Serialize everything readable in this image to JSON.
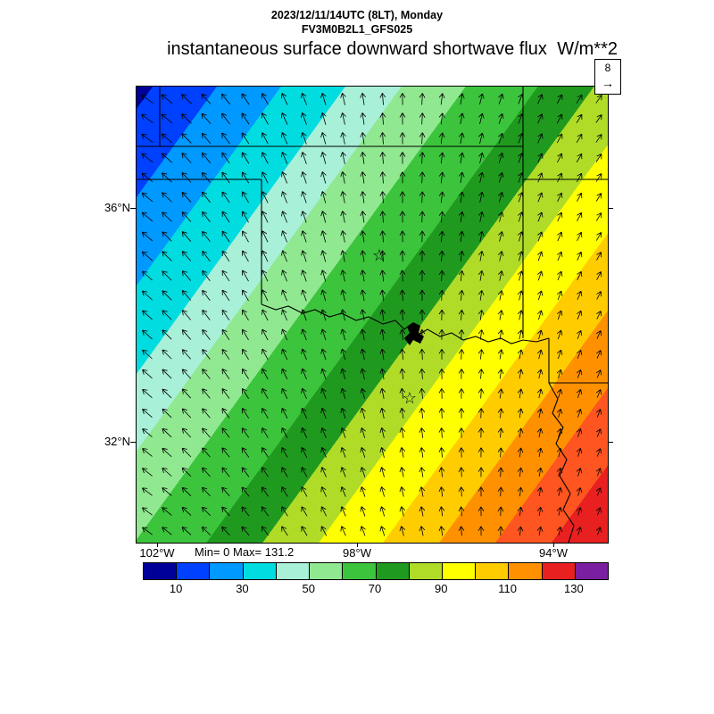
{
  "header": {
    "line1": "2023/12/11/14UTC (8LT), Monday",
    "line2": "FV3M0B2L1_GFS025"
  },
  "title": {
    "text": "instantaneous surface downward shortwave flux",
    "units": "W/m**2"
  },
  "stats": {
    "minmax": "Min= 0 Max= 131.2"
  },
  "wind_ref": {
    "value": "8",
    "arrow": "→"
  },
  "axes": {
    "y": [
      {
        "label": "36°N"
      },
      {
        "label": "32°N"
      }
    ],
    "x": [
      {
        "label": "102°W"
      },
      {
        "label": "98°W"
      },
      {
        "label": "94°W"
      }
    ]
  },
  "chart_data": {
    "type": "heatmap",
    "title": "instantaneous surface downward shortwave flux",
    "units": "W/m**2",
    "valid_time": "2023/12/11/14UTC (8LT), Monday",
    "model": "FV3M0B2L1_GFS025",
    "min": 0,
    "max": 131.2,
    "region": {
      "lon_tick_labels": [
        "102°W",
        "98°W",
        "94°W"
      ],
      "lat_tick_labels": [
        "36°N",
        "32°N"
      ]
    },
    "colorbar": {
      "levels": [
        10,
        20,
        30,
        40,
        50,
        60,
        70,
        80,
        90,
        100,
        110,
        120,
        130
      ],
      "colors": [
        "#000099",
        "#0040ff",
        "#0099ff",
        "#00dce0",
        "#a8f0d8",
        "#90e890",
        "#3cc43c",
        "#1f9a1f",
        "#b0dc28",
        "#ffff00",
        "#ffcc00",
        "#ff9100",
        "#e82020",
        "#7a1fa0"
      ],
      "tick_labels": [
        "10",
        "30",
        "50",
        "70",
        "90",
        "110",
        "130"
      ]
    },
    "field": {
      "comment": "shortwave flux increases along NW-to-SE diagonal, low (blue ~10) NW corner to high (red ~131) SE corner",
      "angle_deg": 126,
      "bands": [
        {
          "c": "#000099",
          "to": 2
        },
        {
          "c": "#0040ff",
          "to": 10
        },
        {
          "c": "#0099ff",
          "to": 18
        },
        {
          "c": "#00dce0",
          "to": 26
        },
        {
          "c": "#a8f0d8",
          "to": 33
        },
        {
          "c": "#90e890",
          "to": 41
        },
        {
          "c": "#3cc43c",
          "to": 50
        },
        {
          "c": "#1f9a1f",
          "to": 57
        },
        {
          "c": "#b0dc28",
          "to": 64
        },
        {
          "c": "#ffff00",
          "to": 72
        },
        {
          "c": "#ffcc00",
          "to": 79
        },
        {
          "c": "#ff9100",
          "to": 86
        },
        {
          "c": "#ff5520",
          "to": 93
        },
        {
          "c": "#e82020",
          "to": 100
        }
      ]
    },
    "wind": {
      "ref_value": 8,
      "grid_step": 22,
      "angle_left_deg": -58,
      "angle_right_deg": 30,
      "len_max": 16,
      "len_min": 9,
      "color": "#000000"
    },
    "map": {
      "borders": [
        [
          [
            26,
            0
          ],
          [
            26,
            67
          ]
        ],
        [
          [
            0,
            67
          ],
          [
            433,
            67
          ]
        ],
        [
          [
            433,
            0
          ],
          [
            433,
            67
          ]
        ],
        [
          [
            433,
            67
          ],
          [
            433,
            282
          ]
        ],
        [
          [
            433,
            104
          ],
          [
            528,
            104
          ]
        ],
        [
          [
            0,
            104
          ],
          [
            140,
            104
          ]
        ],
        [
          [
            140,
            104
          ],
          [
            140,
            244
          ]
        ],
        [
          [
            140,
            244
          ],
          [
            156,
            250
          ],
          [
            170,
            246
          ],
          [
            186,
            254
          ],
          [
            200,
            250
          ],
          [
            216,
            258
          ],
          [
            230,
            254
          ],
          [
            246,
            262
          ],
          [
            260,
            258
          ],
          [
            276,
            266
          ],
          [
            290,
            262
          ],
          [
            300,
            272
          ],
          [
            308,
            266
          ],
          [
            316,
            278
          ],
          [
            326,
            272
          ],
          [
            340,
            280
          ],
          [
            353,
            276
          ],
          [
            366,
            284
          ],
          [
            380,
            280
          ],
          [
            394,
            286
          ],
          [
            408,
            282
          ],
          [
            420,
            288
          ],
          [
            433,
            284
          ],
          [
            448,
            286
          ],
          [
            462,
            282
          ]
        ],
        [
          [
            462,
            282
          ],
          [
            462,
            332
          ]
        ],
        [
          [
            462,
            332
          ],
          [
            528,
            332
          ]
        ],
        [
          [
            462,
            332
          ],
          [
            472,
            350
          ],
          [
            466,
            366
          ],
          [
            478,
            382
          ],
          [
            470,
            400
          ],
          [
            482,
            418
          ],
          [
            474,
            436
          ],
          [
            486,
            456
          ],
          [
            478,
            474
          ],
          [
            490,
            492
          ],
          [
            484,
            511
          ]
        ]
      ],
      "lake": [
        [
          303,
          269
        ],
        [
          310,
          264
        ],
        [
          318,
          268
        ],
        [
          316,
          276
        ],
        [
          322,
          280
        ],
        [
          318,
          288
        ],
        [
          310,
          284
        ],
        [
          306,
          290
        ],
        [
          300,
          282
        ],
        [
          306,
          276
        ]
      ],
      "stars": [
        [
          272,
          195
        ],
        [
          306,
          355
        ]
      ]
    }
  }
}
